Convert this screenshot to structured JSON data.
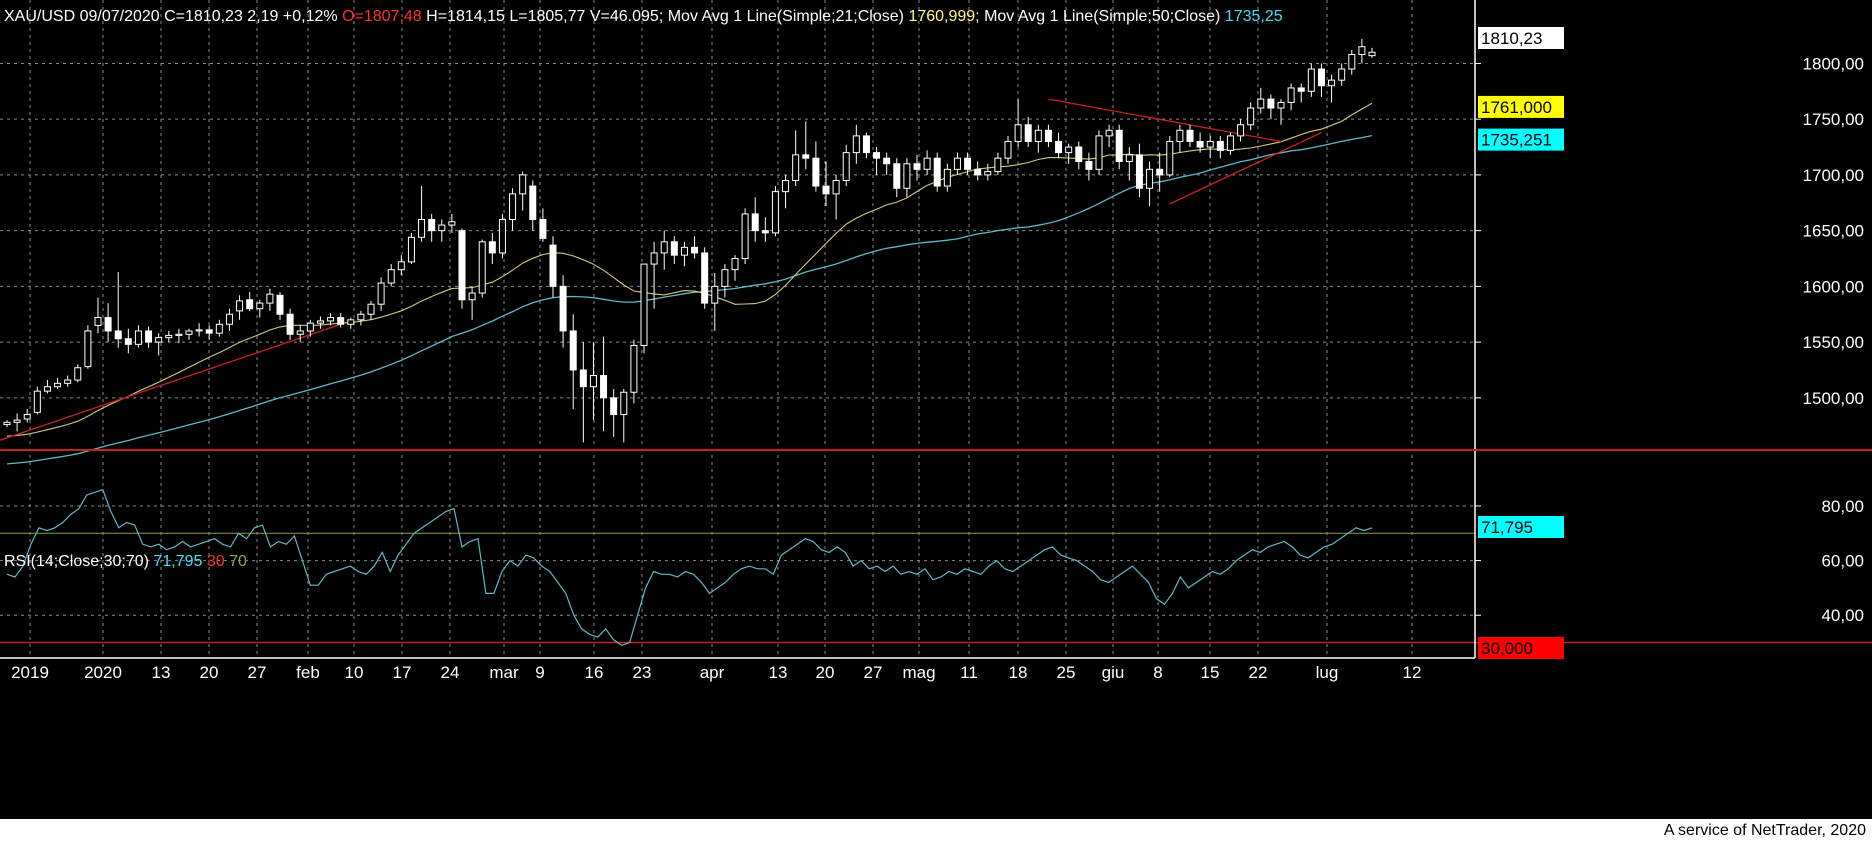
{
  "header": {
    "symbol": "XAU/USD",
    "date": "09/07/2020",
    "close_label": "C=1810,23",
    "change": "2,19",
    "change_pct": "+0,12%",
    "open_label": "O=1807,48",
    "high_label": "H=1814,15",
    "low_label": "L=1805,77",
    "volume_label": "V=46.095;",
    "ma21_label": "Mov Avg 1 Line(Simple;21;Close)",
    "ma21_value": "1760,999;",
    "ma50_label": "Mov Avg 1 Line(Simple;50;Close)",
    "ma50_value": "1735,25"
  },
  "rsi_header": {
    "label": "RSI(14;Close;30;70)",
    "value": "71,795",
    "low": "30",
    "high": "70"
  },
  "footer": "A service of NetTrader, 2020",
  "colors": {
    "background": "#000000",
    "grid": "#8a8a8a",
    "candle": "#ffffff",
    "ma21": "#d8c878",
    "ma50": "#5fb8c8",
    "trendline": "#c82020",
    "rsi_line": "#5fb8c8",
    "rsi_70": "#8a9a40",
    "rsi_30": "#c82020",
    "separator": "#c82020",
    "tag_price_bg": "#ffffff",
    "tag_ma21_bg": "#ffff00",
    "tag_ma50_bg": "#00ffff",
    "tag_rsi_bg": "#00ffff",
    "tag_rsi30_bg": "#ff0000",
    "close_color": "#ffffff",
    "open_color": "#ff3030",
    "ma21_text": "#ffff80",
    "ma50_text": "#40e0f0"
  },
  "chart_data": [
    {
      "type": "candlestick",
      "title": "XAU/USD",
      "ylim": [
        1455,
        1830
      ],
      "y_ticks": [
        "1500,00",
        "1550,00",
        "1600,00",
        "1650,00",
        "1700,00",
        "1750,00",
        "1800,00"
      ],
      "x_tick_labels": [
        "2019",
        "2020",
        "13",
        "20",
        "27",
        "feb",
        "10",
        "17",
        "24",
        "mar",
        "9",
        "16",
        "23",
        "apr",
        "13",
        "20",
        "27",
        "mag",
        "11",
        "18",
        "25",
        "giu",
        "8",
        "15",
        "22",
        "lug",
        "12"
      ],
      "ohlc": [
        [
          1476,
          1480,
          1474,
          1478
        ],
        [
          1478,
          1486,
          1470,
          1480
        ],
        [
          1481,
          1490,
          1478,
          1485
        ],
        [
          1487,
          1510,
          1485,
          1506
        ],
        [
          1506,
          1516,
          1504,
          1510
        ],
        [
          1510,
          1518,
          1508,
          1513
        ],
        [
          1513,
          1520,
          1510,
          1516
        ],
        [
          1516,
          1530,
          1514,
          1527
        ],
        [
          1528,
          1565,
          1526,
          1560
        ],
        [
          1565,
          1590,
          1558,
          1572
        ],
        [
          1572,
          1585,
          1550,
          1560
        ],
        [
          1560,
          1613,
          1545,
          1553
        ],
        [
          1553,
          1562,
          1540,
          1548
        ],
        [
          1548,
          1565,
          1545,
          1560
        ],
        [
          1560,
          1564,
          1545,
          1550
        ],
        [
          1550,
          1558,
          1538,
          1554
        ],
        [
          1554,
          1560,
          1550,
          1556
        ],
        [
          1556,
          1562,
          1549,
          1557
        ],
        [
          1557,
          1562,
          1552,
          1560
        ],
        [
          1560,
          1567,
          1555,
          1561
        ],
        [
          1561,
          1565,
          1552,
          1558
        ],
        [
          1558,
          1570,
          1555,
          1566
        ],
        [
          1566,
          1580,
          1560,
          1575
        ],
        [
          1578,
          1592,
          1570,
          1587
        ],
        [
          1588,
          1595,
          1578,
          1580
        ],
        [
          1580,
          1588,
          1572,
          1585
        ],
        [
          1585,
          1598,
          1578,
          1593
        ],
        [
          1592,
          1595,
          1570,
          1575
        ],
        [
          1575,
          1580,
          1552,
          1557
        ],
        [
          1557,
          1565,
          1550,
          1560
        ],
        [
          1560,
          1570,
          1555,
          1567
        ],
        [
          1567,
          1573,
          1562,
          1569
        ],
        [
          1569,
          1576,
          1565,
          1572
        ],
        [
          1572,
          1576,
          1563,
          1566
        ],
        [
          1566,
          1572,
          1562,
          1570
        ],
        [
          1570,
          1578,
          1565,
          1575
        ],
        [
          1575,
          1587,
          1570,
          1584
        ],
        [
          1584,
          1608,
          1578,
          1603
        ],
        [
          1603,
          1620,
          1600,
          1615
        ],
        [
          1615,
          1628,
          1610,
          1622
        ],
        [
          1622,
          1648,
          1620,
          1644
        ],
        [
          1644,
          1690,
          1640,
          1660
        ],
        [
          1660,
          1665,
          1640,
          1650
        ],
        [
          1650,
          1660,
          1640,
          1655
        ],
        [
          1655,
          1665,
          1648,
          1658
        ],
        [
          1650,
          1652,
          1580,
          1588
        ],
        [
          1588,
          1600,
          1570,
          1594
        ],
        [
          1594,
          1642,
          1590,
          1640
        ],
        [
          1640,
          1648,
          1620,
          1630
        ],
        [
          1630,
          1665,
          1625,
          1660
        ],
        [
          1660,
          1688,
          1650,
          1683
        ],
        [
          1683,
          1703,
          1668,
          1700
        ],
        [
          1690,
          1695,
          1650,
          1660
        ],
        [
          1660,
          1670,
          1640,
          1643
        ],
        [
          1637,
          1645,
          1590,
          1600
        ],
        [
          1600,
          1610,
          1545,
          1560
        ],
        [
          1560,
          1575,
          1490,
          1525
        ],
        [
          1525,
          1550,
          1460,
          1510
        ],
        [
          1510,
          1550,
          1480,
          1520
        ],
        [
          1520,
          1555,
          1470,
          1500
        ],
        [
          1500,
          1508,
          1465,
          1485
        ],
        [
          1485,
          1508,
          1460,
          1505
        ],
        [
          1505,
          1552,
          1495,
          1547
        ],
        [
          1547,
          1620,
          1540,
          1620
        ],
        [
          1620,
          1640,
          1580,
          1630
        ],
        [
          1630,
          1650,
          1615,
          1640
        ],
        [
          1640,
          1645,
          1620,
          1628
        ],
        [
          1628,
          1640,
          1618,
          1635
        ],
        [
          1635,
          1645,
          1625,
          1630
        ],
        [
          1630,
          1635,
          1580,
          1585
        ],
        [
          1585,
          1612,
          1560,
          1600
        ],
        [
          1600,
          1620,
          1590,
          1615
        ],
        [
          1615,
          1628,
          1605,
          1625
        ],
        [
          1625,
          1670,
          1620,
          1665
        ],
        [
          1665,
          1680,
          1640,
          1650
        ],
        [
          1650,
          1662,
          1640,
          1648
        ],
        [
          1648,
          1690,
          1645,
          1685
        ],
        [
          1685,
          1700,
          1670,
          1695
        ],
        [
          1695,
          1740,
          1690,
          1718
        ],
        [
          1718,
          1748,
          1705,
          1715
        ],
        [
          1715,
          1730,
          1685,
          1690
        ],
        [
          1690,
          1712,
          1672,
          1683
        ],
        [
          1683,
          1700,
          1660,
          1695
        ],
        [
          1695,
          1727,
          1690,
          1720
        ],
        [
          1720,
          1745,
          1710,
          1735
        ],
        [
          1735,
          1738,
          1715,
          1720
        ],
        [
          1720,
          1725,
          1700,
          1715
        ],
        [
          1715,
          1720,
          1700,
          1710
        ],
        [
          1710,
          1715,
          1680,
          1688
        ],
        [
          1688,
          1715,
          1680,
          1710
        ],
        [
          1710,
          1718,
          1695,
          1705
        ],
        [
          1705,
          1722,
          1700,
          1715
        ],
        [
          1715,
          1720,
          1685,
          1690
        ],
        [
          1690,
          1710,
          1685,
          1705
        ],
        [
          1705,
          1720,
          1700,
          1715
        ],
        [
          1715,
          1720,
          1700,
          1705
        ],
        [
          1705,
          1712,
          1695,
          1700
        ],
        [
          1700,
          1710,
          1695,
          1703
        ],
        [
          1703,
          1720,
          1700,
          1715
        ],
        [
          1715,
          1735,
          1710,
          1730
        ],
        [
          1730,
          1768,
          1725,
          1745
        ],
        [
          1745,
          1752,
          1725,
          1730
        ],
        [
          1730,
          1745,
          1720,
          1740
        ],
        [
          1740,
          1745,
          1725,
          1730
        ],
        [
          1730,
          1738,
          1715,
          1720
        ],
        [
          1720,
          1728,
          1710,
          1725
        ],
        [
          1725,
          1730,
          1705,
          1712
        ],
        [
          1712,
          1720,
          1695,
          1705
        ],
        [
          1705,
          1740,
          1700,
          1735
        ],
        [
          1735,
          1745,
          1725,
          1740
        ],
        [
          1740,
          1745,
          1705,
          1712
        ],
        [
          1712,
          1725,
          1695,
          1718
        ],
        [
          1718,
          1728,
          1680,
          1688
        ],
        [
          1688,
          1712,
          1672,
          1705
        ],
        [
          1705,
          1720,
          1685,
          1700
        ],
        [
          1700,
          1735,
          1698,
          1730
        ],
        [
          1730,
          1745,
          1720,
          1740
        ],
        [
          1740,
          1745,
          1725,
          1730
        ],
        [
          1730,
          1738,
          1720,
          1725
        ],
        [
          1725,
          1735,
          1715,
          1730
        ],
        [
          1730,
          1735,
          1715,
          1722
        ],
        [
          1722,
          1738,
          1718,
          1735
        ],
        [
          1735,
          1750,
          1730,
          1745
        ],
        [
          1745,
          1765,
          1740,
          1760
        ],
        [
          1760,
          1778,
          1755,
          1768
        ],
        [
          1768,
          1772,
          1750,
          1760
        ],
        [
          1760,
          1768,
          1745,
          1765
        ],
        [
          1765,
          1782,
          1758,
          1778
        ],
        [
          1778,
          1782,
          1765,
          1775
        ],
        [
          1775,
          1800,
          1770,
          1795
        ],
        [
          1795,
          1800,
          1770,
          1780
        ],
        [
          1780,
          1790,
          1765,
          1785
        ],
        [
          1785,
          1800,
          1780,
          1795
        ],
        [
          1795,
          1812,
          1790,
          1808
        ],
        [
          1808,
          1822,
          1800,
          1815
        ],
        [
          1807,
          1814,
          1805,
          1810
        ]
      ],
      "series": [
        {
          "name": "Mov Avg 1 Line(Simple;21;Close)",
          "last": 1760.999
        },
        {
          "name": "Mov Avg 1 Line(Simple;50;Close)",
          "last": 1735.25
        }
      ],
      "price_tags": [
        "1810,23",
        "1761,000",
        "1735,251"
      ]
    },
    {
      "type": "line",
      "title": "RSI(14;Close;30;70)",
      "ylim": [
        28,
        95
      ],
      "y_ticks": [
        "40,00",
        "60,00",
        "80,00"
      ],
      "levels": [
        30,
        70
      ],
      "values": [
        55,
        54,
        58,
        66,
        72,
        71,
        72,
        74,
        77,
        79,
        84,
        85,
        86,
        78,
        72,
        74,
        73,
        66,
        65,
        66,
        64,
        65,
        67,
        65,
        66,
        67,
        68,
        66,
        65,
        70,
        68,
        72,
        73,
        65,
        67,
        66,
        69,
        60,
        51,
        51,
        55,
        56,
        57,
        58,
        56,
        55,
        58,
        63,
        56,
        62,
        66,
        70,
        72,
        74,
        76,
        78,
        79,
        65,
        67,
        68,
        48,
        48,
        56,
        60,
        58,
        62,
        61,
        58,
        56,
        52,
        48,
        40,
        35,
        33,
        32,
        35,
        31,
        29,
        30,
        40,
        50,
        56,
        55,
        55,
        54,
        56,
        55,
        52,
        48,
        50,
        52,
        55,
        57,
        58,
        57,
        57,
        55,
        62,
        64,
        66,
        68,
        67,
        64,
        63,
        65,
        63,
        58,
        60,
        57,
        58,
        56,
        58,
        55,
        56,
        55,
        57,
        53,
        54,
        56,
        55,
        57,
        56,
        55,
        58,
        60,
        57,
        56,
        58,
        60,
        62,
        64,
        65,
        62,
        61,
        60,
        58,
        56,
        53,
        52,
        54,
        56,
        58,
        55,
        52,
        46,
        44,
        48,
        54,
        50,
        52,
        54,
        56,
        55,
        57,
        60,
        62,
        64,
        63,
        65,
        66,
        67,
        65,
        62,
        61,
        63,
        65,
        66,
        68,
        70,
        72,
        71,
        72
      ],
      "value_tag": "71,795",
      "level_tag": "30,000"
    }
  ]
}
